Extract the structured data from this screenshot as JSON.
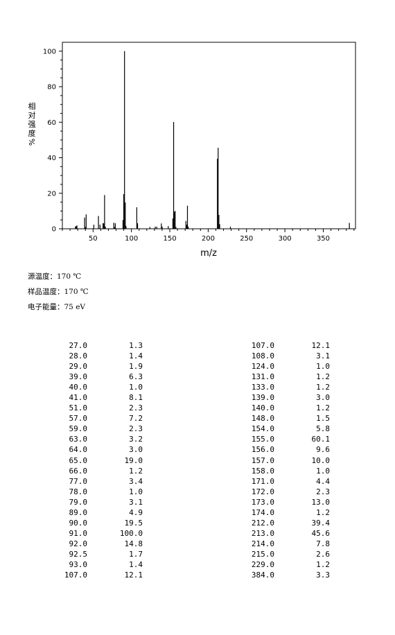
{
  "chart_data": {
    "type": "bar",
    "xlabel": "m/z",
    "ylabel": "相对强度%",
    "xlim": [
      10,
      392
    ],
    "ylim": [
      0,
      105
    ],
    "x_ticks": [
      50,
      100,
      150,
      200,
      250,
      300,
      350
    ],
    "y_ticks": [
      0,
      20,
      40,
      60,
      80,
      100
    ],
    "peaks": [
      {
        "mz": 27.0,
        "intensity": 1.3
      },
      {
        "mz": 28.0,
        "intensity": 1.4
      },
      {
        "mz": 29.0,
        "intensity": 1.9
      },
      {
        "mz": 39.0,
        "intensity": 6.3
      },
      {
        "mz": 40.0,
        "intensity": 1.0
      },
      {
        "mz": 41.0,
        "intensity": 8.1
      },
      {
        "mz": 51.0,
        "intensity": 2.3
      },
      {
        "mz": 57.0,
        "intensity": 7.2
      },
      {
        "mz": 59.0,
        "intensity": 2.3
      },
      {
        "mz": 63.0,
        "intensity": 3.2
      },
      {
        "mz": 64.0,
        "intensity": 3.0
      },
      {
        "mz": 65.0,
        "intensity": 19.0
      },
      {
        "mz": 66.0,
        "intensity": 1.2
      },
      {
        "mz": 77.0,
        "intensity": 3.4
      },
      {
        "mz": 78.0,
        "intensity": 1.0
      },
      {
        "mz": 79.0,
        "intensity": 3.1
      },
      {
        "mz": 89.0,
        "intensity": 4.9
      },
      {
        "mz": 90.0,
        "intensity": 19.5
      },
      {
        "mz": 91.0,
        "intensity": 100.0
      },
      {
        "mz": 92.0,
        "intensity": 14.8
      },
      {
        "mz": 92.5,
        "intensity": 1.7
      },
      {
        "mz": 93.0,
        "intensity": 1.4
      },
      {
        "mz": 107.0,
        "intensity": 12.1
      },
      {
        "mz": 108.0,
        "intensity": 3.1
      },
      {
        "mz": 124.0,
        "intensity": 1.0
      },
      {
        "mz": 131.0,
        "intensity": 1.2
      },
      {
        "mz": 133.0,
        "intensity": 1.2
      },
      {
        "mz": 139.0,
        "intensity": 3.0
      },
      {
        "mz": 140.0,
        "intensity": 1.2
      },
      {
        "mz": 148.0,
        "intensity": 1.5
      },
      {
        "mz": 154.0,
        "intensity": 5.8
      },
      {
        "mz": 155.0,
        "intensity": 60.1
      },
      {
        "mz": 156.0,
        "intensity": 9.6
      },
      {
        "mz": 157.0,
        "intensity": 10.0
      },
      {
        "mz": 158.0,
        "intensity": 1.0
      },
      {
        "mz": 171.0,
        "intensity": 4.4
      },
      {
        "mz": 172.0,
        "intensity": 2.3
      },
      {
        "mz": 173.0,
        "intensity": 13.0
      },
      {
        "mz": 174.0,
        "intensity": 1.2
      },
      {
        "mz": 212.0,
        "intensity": 39.4
      },
      {
        "mz": 213.0,
        "intensity": 45.6
      },
      {
        "mz": 214.0,
        "intensity": 7.8
      },
      {
        "mz": 215.0,
        "intensity": 2.6
      },
      {
        "mz": 229.0,
        "intensity": 1.2
      },
      {
        "mz": 384.0,
        "intensity": 3.3
      }
    ]
  },
  "conditions": [
    "源温度：170 ℃",
    "样品温度：170 ℃",
    "电子能量：75 eV"
  ],
  "table": {
    "left": [
      [
        "27.0",
        "1.3"
      ],
      [
        "28.0",
        "1.4"
      ],
      [
        "29.0",
        "1.9"
      ],
      [
        "39.0",
        "6.3"
      ],
      [
        "40.0",
        "1.0"
      ],
      [
        "41.0",
        "8.1"
      ],
      [
        "51.0",
        "2.3"
      ],
      [
        "57.0",
        "7.2"
      ],
      [
        "59.0",
        "2.3"
      ],
      [
        "63.0",
        "3.2"
      ],
      [
        "64.0",
        "3.0"
      ],
      [
        "65.0",
        "19.0"
      ],
      [
        "66.0",
        "1.2"
      ],
      [
        "77.0",
        "3.4"
      ],
      [
        "78.0",
        "1.0"
      ],
      [
        "79.0",
        "3.1"
      ],
      [
        "89.0",
        "4.9"
      ],
      [
        "90.0",
        "19.5"
      ],
      [
        "91.0",
        "100.0"
      ],
      [
        "92.0",
        "14.8"
      ],
      [
        "92.5",
        "1.7"
      ],
      [
        "93.0",
        "1.4"
      ],
      [
        "107.0",
        "12.1"
      ]
    ],
    "right": [
      [
        "107.0",
        "12.1"
      ],
      [
        "108.0",
        "3.1"
      ],
      [
        "124.0",
        "1.0"
      ],
      [
        "131.0",
        "1.2"
      ],
      [
        "133.0",
        "1.2"
      ],
      [
        "139.0",
        "3.0"
      ],
      [
        "140.0",
        "1.2"
      ],
      [
        "148.0",
        "1.5"
      ],
      [
        "154.0",
        "5.8"
      ],
      [
        "155.0",
        "60.1"
      ],
      [
        "156.0",
        "9.6"
      ],
      [
        "157.0",
        "10.0"
      ],
      [
        "158.0",
        "1.0"
      ],
      [
        "171.0",
        "4.4"
      ],
      [
        "172.0",
        "2.3"
      ],
      [
        "173.0",
        "13.0"
      ],
      [
        "174.0",
        "1.2"
      ],
      [
        "212.0",
        "39.4"
      ],
      [
        "213.0",
        "45.6"
      ],
      [
        "214.0",
        "7.8"
      ],
      [
        "215.0",
        "2.6"
      ],
      [
        "229.0",
        "1.2"
      ],
      [
        "384.0",
        "3.3"
      ]
    ]
  }
}
